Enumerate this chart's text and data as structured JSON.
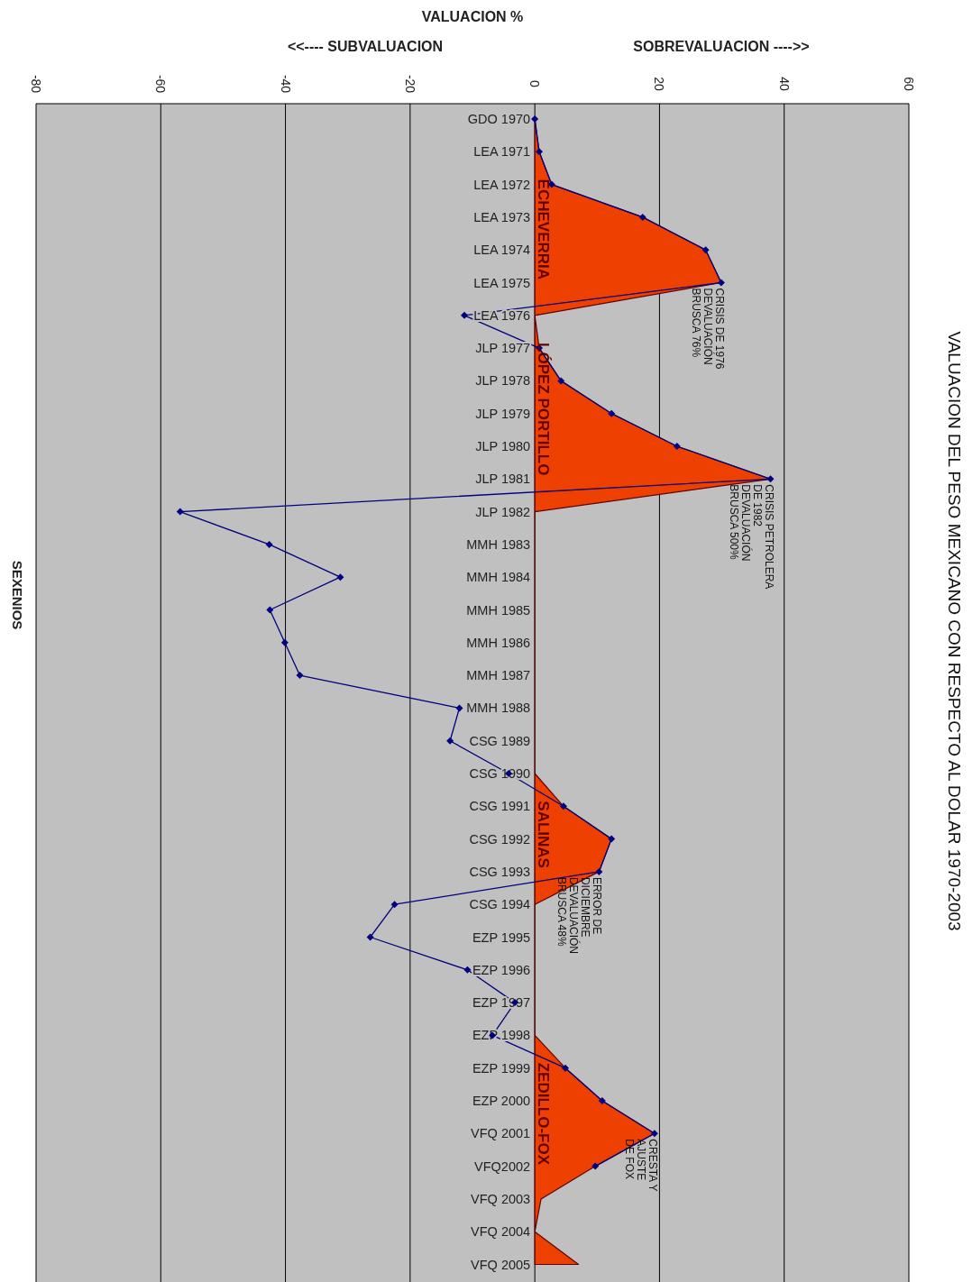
{
  "chart_data": {
    "type": "line",
    "orientation": "horizontal",
    "title": "VALUACION DEL PESO MEXICANO CON RESPECTO AL DOLAR 1970-2003",
    "xlabel": "VALUACION %",
    "ylabel": "SEXENIOS",
    "categories": [
      "GDO 1970",
      "LEA 1971",
      "LEA 1972",
      "LEA 1973",
      "LEA 1974",
      "LEA 1975",
      "LEA 1976",
      "JLP 1977",
      "JLP 1978",
      "JLP 1979",
      "JLP 1980",
      "JLP 1981",
      "JLP 1982",
      "MMH 1983",
      "MMH 1984",
      "MMH 1985",
      "MMH 1986",
      "MMH 1987",
      "MMH 1988",
      "CSG 1989",
      "CSG 1990",
      "CSG 1991",
      "CSG 1992",
      "CSG 1993",
      "CSG 1994",
      "EZP 1995",
      "EZP 1996",
      "EZP 1997",
      "EZP 1998",
      "EZP 1999",
      "EZP 2000",
      "VFQ 2001",
      "VFQ2002",
      "VFQ 2003",
      "VFQ 2004",
      "VFQ 2005"
    ],
    "series": [
      {
        "type": "area",
        "color": "#ee4000",
        "values": [
          0,
          0.7,
          2.7,
          17.3,
          27.4,
          29.9,
          0,
          0.7,
          4.2,
          12.3,
          22.8,
          37.8,
          0,
          0,
          0,
          0,
          0,
          0,
          0,
          0,
          0,
          4.6,
          12.3,
          10.3,
          0,
          0,
          0,
          0,
          0,
          4.9,
          10.8,
          19.2,
          9.7,
          1,
          0,
          7
        ]
      },
      {
        "color": "#000080",
        "marker": "diamond",
        "values": [
          0,
          0.7,
          2.7,
          17.3,
          27.4,
          29.9,
          -11.3,
          0.7,
          4.2,
          12.3,
          22.8,
          37.8,
          -56.9,
          -42.6,
          -31.2,
          -42.5,
          -40.1,
          -37.7,
          -12.1,
          -13.6,
          -4.2,
          4.6,
          12.3,
          10.3,
          -22.5,
          -26.4,
          -10.8,
          -3.2,
          -6.8,
          4.9,
          10.8,
          19.2,
          9.7,
          null,
          null,
          null
        ]
      }
    ],
    "xlim": [
      -80,
      60
    ],
    "xticks": [
      -80,
      -60,
      -40,
      -20,
      0,
      20,
      40,
      60
    ],
    "grid": "x",
    "annotations": [
      "<<---- SUBVALUACION",
      "SOBREVALUACION ---->>",
      {
        "text": "ECHEVERRIA",
        "y": "LEA 1972",
        "x": 0
      },
      {
        "text": "LÓPEZ PORTILLO",
        "y": "JLP 1977",
        "x": 0
      },
      {
        "text": "SALINAS",
        "y": "CSG 1991",
        "x": 0
      },
      {
        "text": "ZEDILLO-FOX",
        "y": "EZP 1999",
        "x": 0
      },
      {
        "text": "CRISIS DE 1976\nDEVALUACIÓN\nBRUSCA 76%",
        "y": "LEA 1975",
        "x": 29.9
      },
      {
        "text": "CRISIS PETROLERA\nDE 1982\nDEVALUACIÓN\nBRUSCA 500%",
        "y": "JLP 1981",
        "x": 37.8
      },
      {
        "text": "ERROR DE\nDICIEMBRE\nDEVALUACIÓN\nBRUSCA 48%",
        "y": "CSG 1993",
        "x": 10.3
      },
      {
        "text": "CRESTA Y\nAJUSTE\nDE FOX",
        "y": "VFQ 2001",
        "x": 19.2
      }
    ]
  }
}
